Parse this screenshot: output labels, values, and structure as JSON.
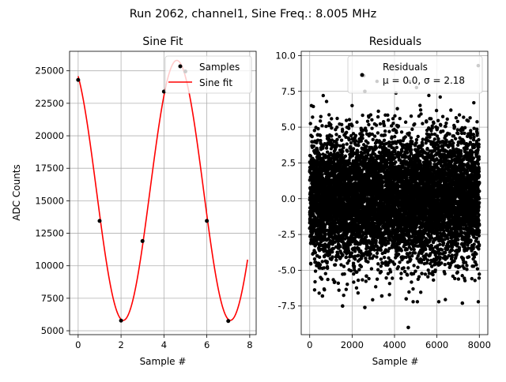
{
  "figure": {
    "suptitle": "Run 2062, channel1, Sine Freq.: 8.005 MHz"
  },
  "chart_data": [
    {
      "type": "line",
      "title": "Sine Fit",
      "xlabel": "Sample #",
      "ylabel": "ADC Counts",
      "xlim": [
        -0.4,
        8.3
      ],
      "ylim": [
        4700,
        26500
      ],
      "xticks": [
        0,
        2,
        4,
        6,
        8
      ],
      "yticks": [
        5000,
        7500,
        10000,
        12500,
        15000,
        17500,
        20000,
        22500,
        25000
      ],
      "grid": true,
      "legend": {
        "placement": "upper-right",
        "entries": [
          "Samples",
          "Sine fit"
        ]
      },
      "series": [
        {
          "name": "Samples",
          "kind": "scatter",
          "color": "#000000",
          "x": [
            0,
            1,
            2,
            3,
            4,
            5,
            6,
            7
          ],
          "y": [
            24300,
            13450,
            5780,
            11900,
            23400,
            24950,
            13450,
            5750
          ]
        },
        {
          "name": "Sine fit",
          "kind": "line",
          "color": "#ff0000",
          "model": {
            "offset": 15800,
            "amplitude": 10000,
            "period_samples": 4.996,
            "peak_at": 4.6
          },
          "x_range": [
            0,
            7.9
          ]
        }
      ]
    },
    {
      "type": "scatter",
      "title": "Residuals",
      "xlabel": "Sample #",
      "ylabel": "",
      "xlim": [
        -400,
        8400
      ],
      "ylim": [
        -9.5,
        10.3
      ],
      "xticks": [
        0,
        2000,
        4000,
        6000,
        8000
      ],
      "yticks": [
        -7.5,
        -5.0,
        -2.5,
        0.0,
        2.5,
        5.0,
        7.5,
        10.0
      ],
      "grid": true,
      "legend": {
        "placement": "upper-right",
        "entries": [
          "Residuals",
          "μ = 0.0, σ = 2.18"
        ]
      },
      "stats": {
        "mu": 0.0,
        "sigma": 2.18
      },
      "series": [
        {
          "name": "Residuals",
          "color": "#000000",
          "n_points": 8000,
          "x_range": [
            0,
            8000
          ],
          "noted_extremes": [
            {
              "x": 7950,
              "y": 9.3
            },
            {
              "x": 2550,
              "y": 8.6
            },
            {
              "x": 2600,
              "y": 7.5
            },
            {
              "x": 4650,
              "y": -9.0
            },
            {
              "x": 4550,
              "y": -7.0
            },
            {
              "x": 1550,
              "y": -7.5
            },
            {
              "x": 2600,
              "y": -7.6
            },
            {
              "x": 3400,
              "y": -6.8
            },
            {
              "x": 600,
              "y": -6.8
            },
            {
              "x": 7200,
              "y": -7.3
            },
            {
              "x": 4700,
              "y": 8.2
            }
          ]
        }
      ]
    }
  ]
}
